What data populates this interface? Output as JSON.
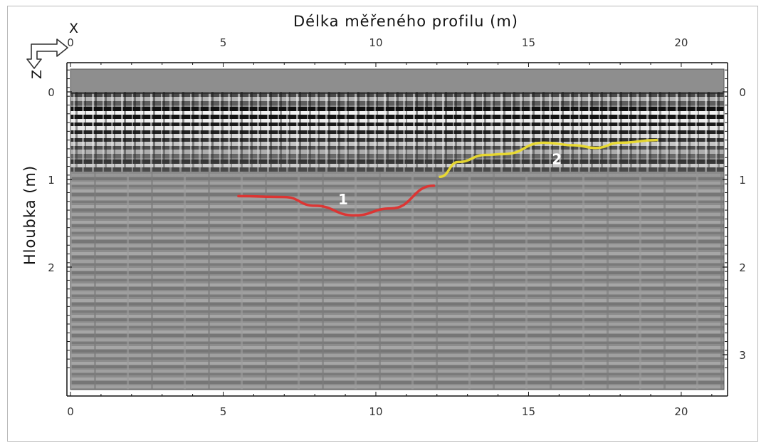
{
  "chart_data": {
    "type": "line",
    "title": "",
    "xlabel": "Délka měřeného profilu (m)",
    "ylabel": "Hloubka (m)",
    "xlim": [
      0,
      21.4
    ],
    "ylim": [
      0,
      3
    ],
    "x_ticks": [
      0,
      5,
      10,
      15,
      20
    ],
    "y_ticks_left": [
      0,
      1,
      2
    ],
    "y_ticks_right": [
      0,
      1,
      2,
      3
    ],
    "axis_direction_labels": {
      "x": "X",
      "z": "Z"
    },
    "background": "ground-penetrating radar radargram (grayscale)",
    "series": [
      {
        "name": "1",
        "color": "#e0302e",
        "points": [
          [
            5.5,
            1.19
          ],
          [
            7.0,
            1.2
          ],
          [
            8.0,
            1.3
          ],
          [
            9.3,
            1.41
          ],
          [
            10.5,
            1.33
          ],
          [
            11.9,
            1.07
          ]
        ]
      },
      {
        "name": "2",
        "color": "#ecdc2e",
        "points": [
          [
            12.1,
            0.97
          ],
          [
            12.7,
            0.8
          ],
          [
            13.6,
            0.72
          ],
          [
            14.2,
            0.71
          ],
          [
            15.5,
            0.58
          ],
          [
            16.5,
            0.61
          ],
          [
            17.2,
            0.64
          ],
          [
            18.0,
            0.58
          ],
          [
            19.2,
            0.55
          ]
        ]
      }
    ],
    "annotations": [
      {
        "text": "1",
        "x": 9.3,
        "y": 1.22
      },
      {
        "text": "2",
        "x": 16.3,
        "y": 0.76
      }
    ],
    "colors": {
      "radargram_base": "#8a8a8a",
      "band_dark": "#111111",
      "band_light": "#f4f4f4"
    }
  }
}
